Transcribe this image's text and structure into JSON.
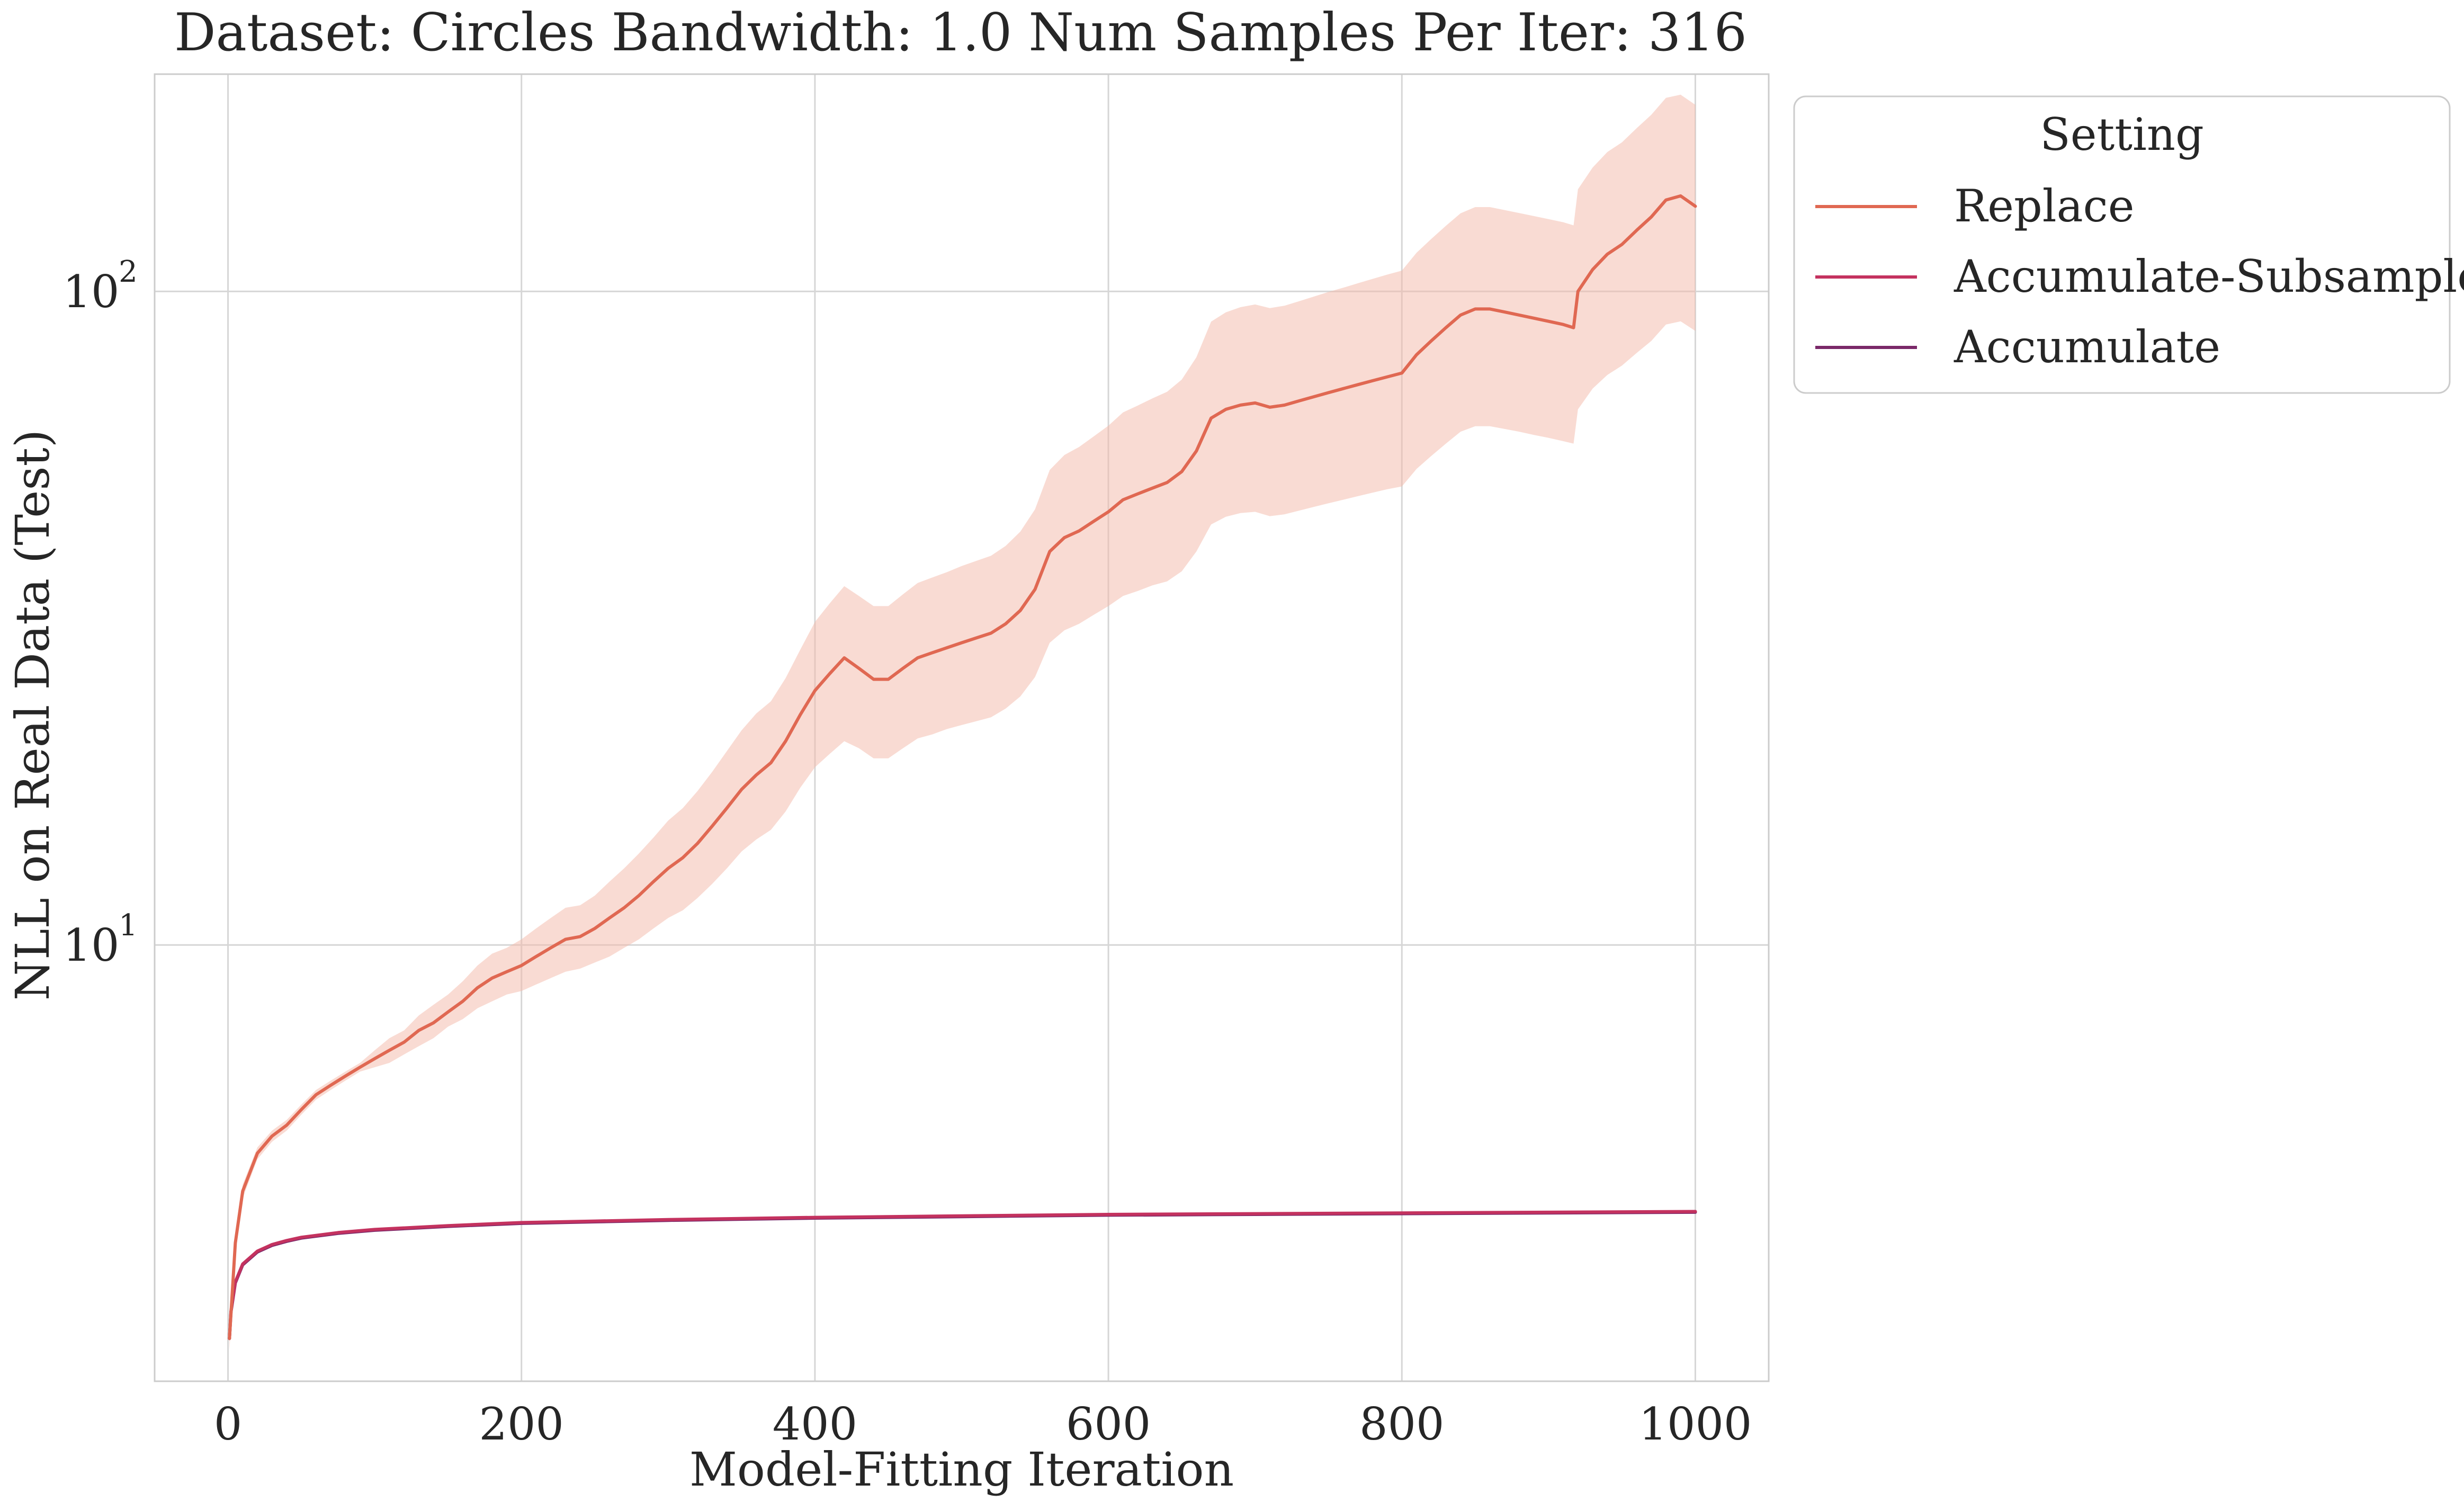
{
  "chart_data": {
    "type": "line",
    "title": "Dataset: Circles Bandwidth: 1.0 Num Samples Per Iter: 316",
    "xlabel": "Model-Fitting Iteration",
    "ylabel": "NLL on Real Data (Test)",
    "xlim": [
      -50,
      1050
    ],
    "ylim": [
      2.15,
      215
    ],
    "yscale": "log",
    "grid": true,
    "x_ticks": [
      {
        "value": 0,
        "label": "0"
      },
      {
        "value": 200,
        "label": "200"
      },
      {
        "value": 400,
        "label": "400"
      },
      {
        "value": 600,
        "label": "600"
      },
      {
        "value": 800,
        "label": "800"
      },
      {
        "value": 1000,
        "label": "1000"
      }
    ],
    "y_ticks": [
      {
        "value": 10,
        "base": "10",
        "exp": "1"
      },
      {
        "value": 100,
        "base": "10",
        "exp": "2"
      }
    ],
    "legend": {
      "title": "Setting",
      "placement": "outside-upper-right",
      "entries": [
        "Replace",
        "Accumulate-Subsample",
        "Accumulate"
      ]
    },
    "series": [
      {
        "name": "Replace",
        "color": "#e06852",
        "band_color": "#f3b8a8",
        "x": [
          1,
          5,
          10,
          20,
          30,
          40,
          50,
          60,
          70,
          80,
          90,
          100,
          110,
          120,
          130,
          140,
          150,
          160,
          170,
          180,
          190,
          200,
          210,
          220,
          230,
          240,
          250,
          260,
          270,
          280,
          290,
          300,
          310,
          320,
          330,
          340,
          350,
          360,
          370,
          380,
          390,
          400,
          410,
          420,
          430,
          440,
          450,
          460,
          470,
          480,
          490,
          500,
          510,
          520,
          530,
          540,
          550,
          560,
          570,
          580,
          590,
          600,
          610,
          620,
          630,
          640,
          650,
          660,
          670,
          680,
          690,
          700,
          710,
          720,
          730,
          740,
          750,
          760,
          770,
          780,
          790,
          800,
          810,
          820,
          830,
          840,
          850,
          860,
          870,
          880,
          890,
          900,
          910,
          917,
          920,
          930,
          940,
          950,
          960,
          970,
          980,
          990,
          1000
        ],
        "y": [
          2.5,
          3.5,
          4.2,
          4.8,
          5.1,
          5.3,
          5.6,
          5.9,
          6.1,
          6.3,
          6.5,
          6.7,
          6.9,
          7.1,
          7.4,
          7.6,
          7.9,
          8.2,
          8.6,
          8.9,
          9.1,
          9.3,
          9.6,
          9.9,
          10.2,
          10.3,
          10.6,
          11.0,
          11.4,
          11.9,
          12.5,
          13.1,
          13.6,
          14.3,
          15.2,
          16.2,
          17.3,
          18.2,
          19.0,
          20.5,
          22.5,
          24.5,
          26.0,
          27.5,
          26.5,
          25.5,
          25.5,
          26.5,
          27.5,
          28.0,
          28.5,
          29.0,
          29.5,
          30.0,
          31.0,
          32.5,
          35.0,
          40.0,
          42.0,
          43.0,
          44.5,
          46.0,
          48.0,
          49.0,
          50.0,
          51.0,
          53.0,
          57.0,
          64.0,
          66.0,
          67.0,
          67.5,
          66.5,
          67.0,
          68.0,
          69.0,
          70.0,
          71.0,
          72.0,
          73.0,
          74.0,
          75.0,
          80.0,
          84.0,
          88.0,
          92.0,
          94.0,
          94.0,
          93.0,
          92.0,
          91.0,
          90.0,
          89.0,
          88.0,
          100.0,
          108.0,
          114.0,
          118.0,
          124.0,
          130.0,
          138.0,
          140.0,
          135.0
        ],
        "lower": [
          2.4,
          3.4,
          4.1,
          4.7,
          5.0,
          5.2,
          5.5,
          5.8,
          6.0,
          6.2,
          6.4,
          6.5,
          6.6,
          6.8,
          7.0,
          7.2,
          7.5,
          7.7,
          8.0,
          8.2,
          8.4,
          8.5,
          8.7,
          8.9,
          9.1,
          9.2,
          9.4,
          9.6,
          9.9,
          10.2,
          10.6,
          11.0,
          11.3,
          11.8,
          12.4,
          13.1,
          13.9,
          14.5,
          15.0,
          16.0,
          17.4,
          18.7,
          19.6,
          20.5,
          20.0,
          19.3,
          19.3,
          20.0,
          20.7,
          21.0,
          21.4,
          21.7,
          22.0,
          22.3,
          23.0,
          24.0,
          25.7,
          29.0,
          30.3,
          31.0,
          32.0,
          33.0,
          34.2,
          34.8,
          35.5,
          36.0,
          37.3,
          40.0,
          44.0,
          45.2,
          45.8,
          46.0,
          45.3,
          45.6,
          46.2,
          46.8,
          47.4,
          48.0,
          48.6,
          49.2,
          49.8,
          50.3,
          53.5,
          56.0,
          58.5,
          61.0,
          62.2,
          62.2,
          61.6,
          61.0,
          60.3,
          59.7,
          59.0,
          58.5,
          66.0,
          71.0,
          74.5,
          77.0,
          80.5,
          84.0,
          89.0,
          90.0,
          87.0
        ],
        "upper": [
          2.6,
          3.6,
          4.3,
          4.9,
          5.2,
          5.4,
          5.7,
          6.0,
          6.2,
          6.4,
          6.6,
          6.9,
          7.2,
          7.4,
          7.8,
          8.1,
          8.4,
          8.8,
          9.3,
          9.7,
          9.9,
          10.2,
          10.6,
          11.0,
          11.4,
          11.5,
          11.9,
          12.5,
          13.1,
          13.8,
          14.6,
          15.5,
          16.2,
          17.2,
          18.4,
          19.8,
          21.3,
          22.6,
          23.6,
          25.6,
          28.3,
          31.2,
          33.3,
          35.4,
          34.2,
          33.0,
          33.0,
          34.4,
          35.8,
          36.5,
          37.2,
          38.0,
          38.7,
          39.4,
          40.8,
          42.9,
          46.4,
          53.3,
          56.2,
          57.8,
          60.0,
          62.3,
          65.3,
          66.9,
          68.6,
          70.2,
          73.3,
          79.3,
          89.9,
          92.9,
          94.6,
          95.5,
          94.3,
          95.1,
          96.6,
          98.2,
          99.8,
          101.3,
          102.9,
          104.5,
          106.1,
          107.6,
          114.6,
          120.3,
          126.0,
          131.7,
          134.6,
          134.6,
          133.2,
          131.8,
          130.4,
          129.0,
          127.6,
          126.2,
          143.3,
          154.7,
          163.4,
          169.1,
          177.7,
          186.3,
          197.8,
          200.0,
          193.0
        ]
      },
      {
        "name": "Accumulate-Subsample",
        "color": "#c4325f",
        "x": [
          1,
          2,
          5,
          10,
          20,
          30,
          40,
          50,
          75,
          100,
          150,
          200,
          250,
          300,
          400,
          500,
          600,
          700,
          800,
          900,
          1000
        ],
        "y": [
          2.5,
          2.75,
          3.05,
          3.25,
          3.4,
          3.48,
          3.53,
          3.57,
          3.63,
          3.67,
          3.72,
          3.76,
          3.78,
          3.8,
          3.83,
          3.85,
          3.87,
          3.88,
          3.89,
          3.9,
          3.91
        ]
      },
      {
        "name": "Accumulate",
        "color": "#7a2869",
        "x": [
          1,
          2,
          5,
          10,
          20,
          30,
          40,
          50,
          75,
          100,
          150,
          200,
          250,
          300,
          400,
          500,
          600,
          700,
          800,
          900,
          1000
        ],
        "y": [
          2.5,
          2.74,
          3.04,
          3.24,
          3.39,
          3.47,
          3.52,
          3.56,
          3.62,
          3.66,
          3.71,
          3.75,
          3.77,
          3.79,
          3.82,
          3.84,
          3.86,
          3.87,
          3.88,
          3.89,
          3.9
        ]
      }
    ]
  }
}
